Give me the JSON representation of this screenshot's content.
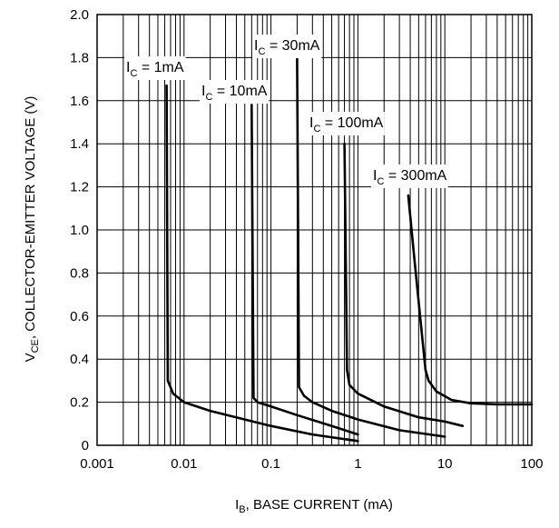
{
  "chart_data": {
    "type": "line",
    "title": "",
    "x_scale": "log",
    "xlim": [
      0.001,
      100
    ],
    "ylim": [
      0,
      2.0
    ],
    "grid": true,
    "xlabel": {
      "main": "I",
      "sub": "B",
      "rest": ", BASE CURRENT (mA)"
    },
    "ylabel": {
      "main": "V",
      "sub": "CE",
      "rest": ", COLLECTOR-EMITTER VOLTAGE (V)"
    },
    "x_ticks": [
      {
        "value": 0.001,
        "label": "0.001"
      },
      {
        "value": 0.01,
        "label": "0.01"
      },
      {
        "value": 0.1,
        "label": "0.1"
      },
      {
        "value": 1,
        "label": "1"
      },
      {
        "value": 10,
        "label": "10"
      },
      {
        "value": 100,
        "label": "100"
      }
    ],
    "y_ticks": [
      {
        "value": 0,
        "label": "0"
      },
      {
        "value": 0.2,
        "label": "0.2"
      },
      {
        "value": 0.4,
        "label": "0.4"
      },
      {
        "value": 0.6,
        "label": "0.6"
      },
      {
        "value": 0.8,
        "label": "0.8"
      },
      {
        "value": 1.0,
        "label": "1.0"
      },
      {
        "value": 1.2,
        "label": "1.2"
      },
      {
        "value": 1.4,
        "label": "1.4"
      },
      {
        "value": 1.6,
        "label": "1.6"
      },
      {
        "value": 1.8,
        "label": "1.8"
      },
      {
        "value": 2.0,
        "label": "2.0"
      }
    ],
    "series": [
      {
        "label": {
          "main": "I",
          "sub": "C",
          "rest": " = 1mA"
        },
        "points": [
          [
            0.0063,
            1.67
          ],
          [
            0.0065,
            0.3
          ],
          [
            0.0075,
            0.24
          ],
          [
            0.01,
            0.2
          ],
          [
            0.02,
            0.16
          ],
          [
            0.05,
            0.12
          ],
          [
            0.1,
            0.09
          ],
          [
            0.3,
            0.05
          ],
          [
            1.0,
            0.02
          ]
        ]
      },
      {
        "label": {
          "main": "I",
          "sub": "C",
          "rest": " = 10mA"
        },
        "points": [
          [
            0.06,
            1.58
          ],
          [
            0.063,
            0.22
          ],
          [
            0.07,
            0.2
          ],
          [
            0.1,
            0.18
          ],
          [
            0.2,
            0.14
          ],
          [
            0.5,
            0.09
          ],
          [
            1.0,
            0.05
          ]
        ]
      },
      {
        "label": {
          "main": "I",
          "sub": "C",
          "rest": " = 30mA"
        },
        "points": [
          [
            0.2,
            1.8
          ],
          [
            0.21,
            0.27
          ],
          [
            0.24,
            0.23
          ],
          [
            0.3,
            0.2
          ],
          [
            0.5,
            0.16
          ],
          [
            1.0,
            0.12
          ],
          [
            3.0,
            0.07
          ],
          [
            10.0,
            0.04
          ]
        ]
      },
      {
        "label": {
          "main": "I",
          "sub": "C",
          "rest": " = 100mA"
        },
        "points": [
          [
            0.7,
            1.4
          ],
          [
            0.75,
            0.35
          ],
          [
            0.8,
            0.28
          ],
          [
            1.0,
            0.24
          ],
          [
            2.0,
            0.18
          ],
          [
            5.0,
            0.13
          ],
          [
            10.0,
            0.11
          ],
          [
            16.0,
            0.09
          ]
        ]
      },
      {
        "label": {
          "main": "I",
          "sub": "C",
          "rest": " = 300mA"
        },
        "points": [
          [
            3.8,
            1.16
          ],
          [
            4.5,
            0.85
          ],
          [
            5.5,
            0.5
          ],
          [
            6.0,
            0.35
          ],
          [
            6.5,
            0.3
          ],
          [
            8.0,
            0.25
          ],
          [
            12.0,
            0.21
          ],
          [
            20.0,
            0.195
          ],
          [
            40.0,
            0.19
          ],
          [
            100.0,
            0.19
          ]
        ]
      }
    ]
  }
}
